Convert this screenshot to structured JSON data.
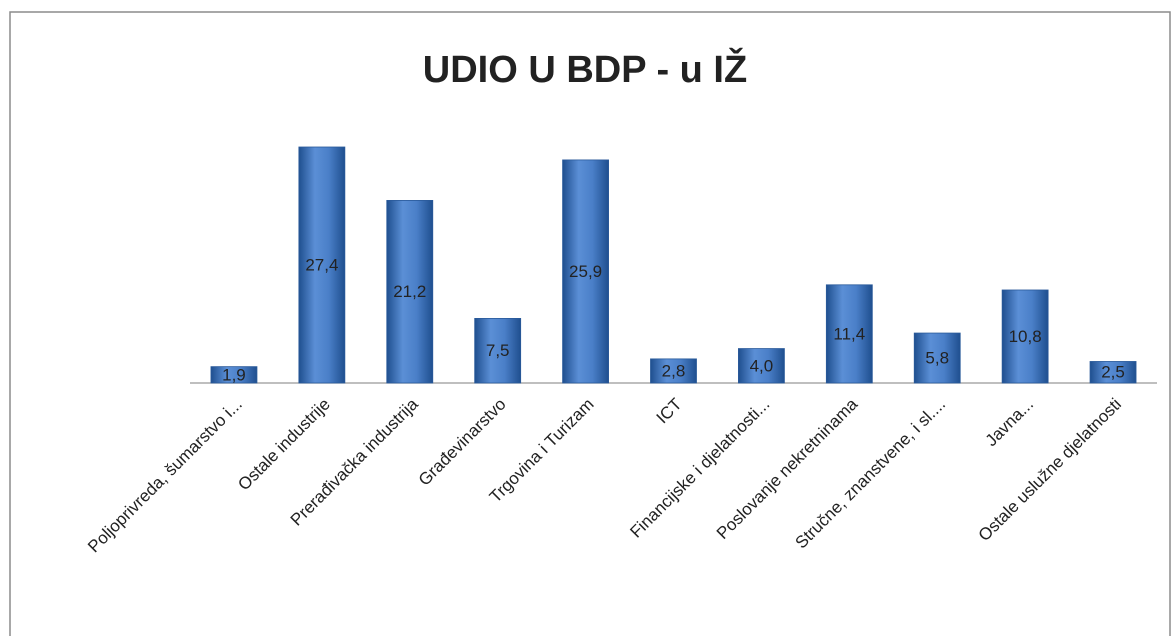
{
  "chart_data": {
    "type": "bar",
    "title": "UDIO U BDP - u IŽ",
    "categories": [
      "Poljoprivreda, šumarstvo i...",
      "Ostale industrije",
      "Prerađivačka industrija",
      "Građevinarstvo",
      "Trgovina i Turizam",
      "ICT",
      "Financijske i djelatnosti...",
      "Poslovanje nekretninama",
      "Stručne, znanstvene, i sl....",
      "Javna...",
      "Ostale uslužne djelatnosti"
    ],
    "values": [
      1.9,
      27.4,
      21.2,
      7.5,
      25.9,
      2.8,
      4.0,
      11.4,
      5.8,
      10.8,
      2.5
    ],
    "value_labels": [
      "1,9",
      "27,4",
      "21,2",
      "7,5",
      "25,9",
      "2,8",
      "4,0",
      "11,4",
      "5,8",
      "10,8",
      "2,5"
    ],
    "color": "#3f72b8"
  }
}
